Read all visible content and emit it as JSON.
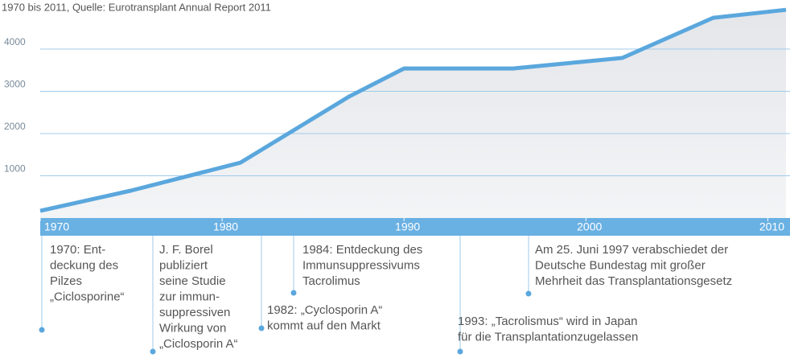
{
  "chart_data": {
    "type": "area",
    "subtitle": "1970 bis 2011, Quelle: Eurotransplant Annual Report 2011",
    "x": [
      1970,
      1975,
      1981,
      1987,
      1990,
      1996,
      2002,
      2007,
      2011
    ],
    "series": [
      {
        "color": "#5aa7dd",
        "values": [
          170,
          650,
          1310,
          2880,
          3540,
          3540,
          3790,
          4740,
          4930
        ]
      }
    ],
    "xlim": [
      1970,
      2011
    ],
    "xticks": [
      1970,
      1980,
      1990,
      2000,
      2010
    ],
    "ylim": [
      0,
      5000
    ],
    "yticks": [
      1000,
      2000,
      3000,
      4000
    ],
    "grid": true,
    "annotations": [
      {
        "lines": [
          "1970: Ent-",
          "deckung des",
          "Pilzes",
          "„Ciclosporine“"
        ]
      },
      {
        "lines": [
          "J. F. Borel",
          "publiziert",
          "seine Studie",
          "zur immun-",
          "suppressiven",
          "Wirkung von",
          "„Ciclosporin A“"
        ]
      },
      {
        "lines": [
          "1982: „Cyclosporin A“",
          "kommt auf den Markt"
        ]
      },
      {
        "lines": [
          "1984: Entdeckung des",
          "Immunsuppressivums",
          "Tacrolimus"
        ]
      },
      {
        "lines": [
          "1993: „Tacrolismus“ wird in Japan",
          "für die Transplantationzugelassen"
        ]
      },
      {
        "lines": [
          "Am 25. Juni 1997 verabschiedet der",
          "Deutsche Bundestag mit großer",
          "Mehrheit das Transplantationsgesetz"
        ]
      }
    ]
  }
}
